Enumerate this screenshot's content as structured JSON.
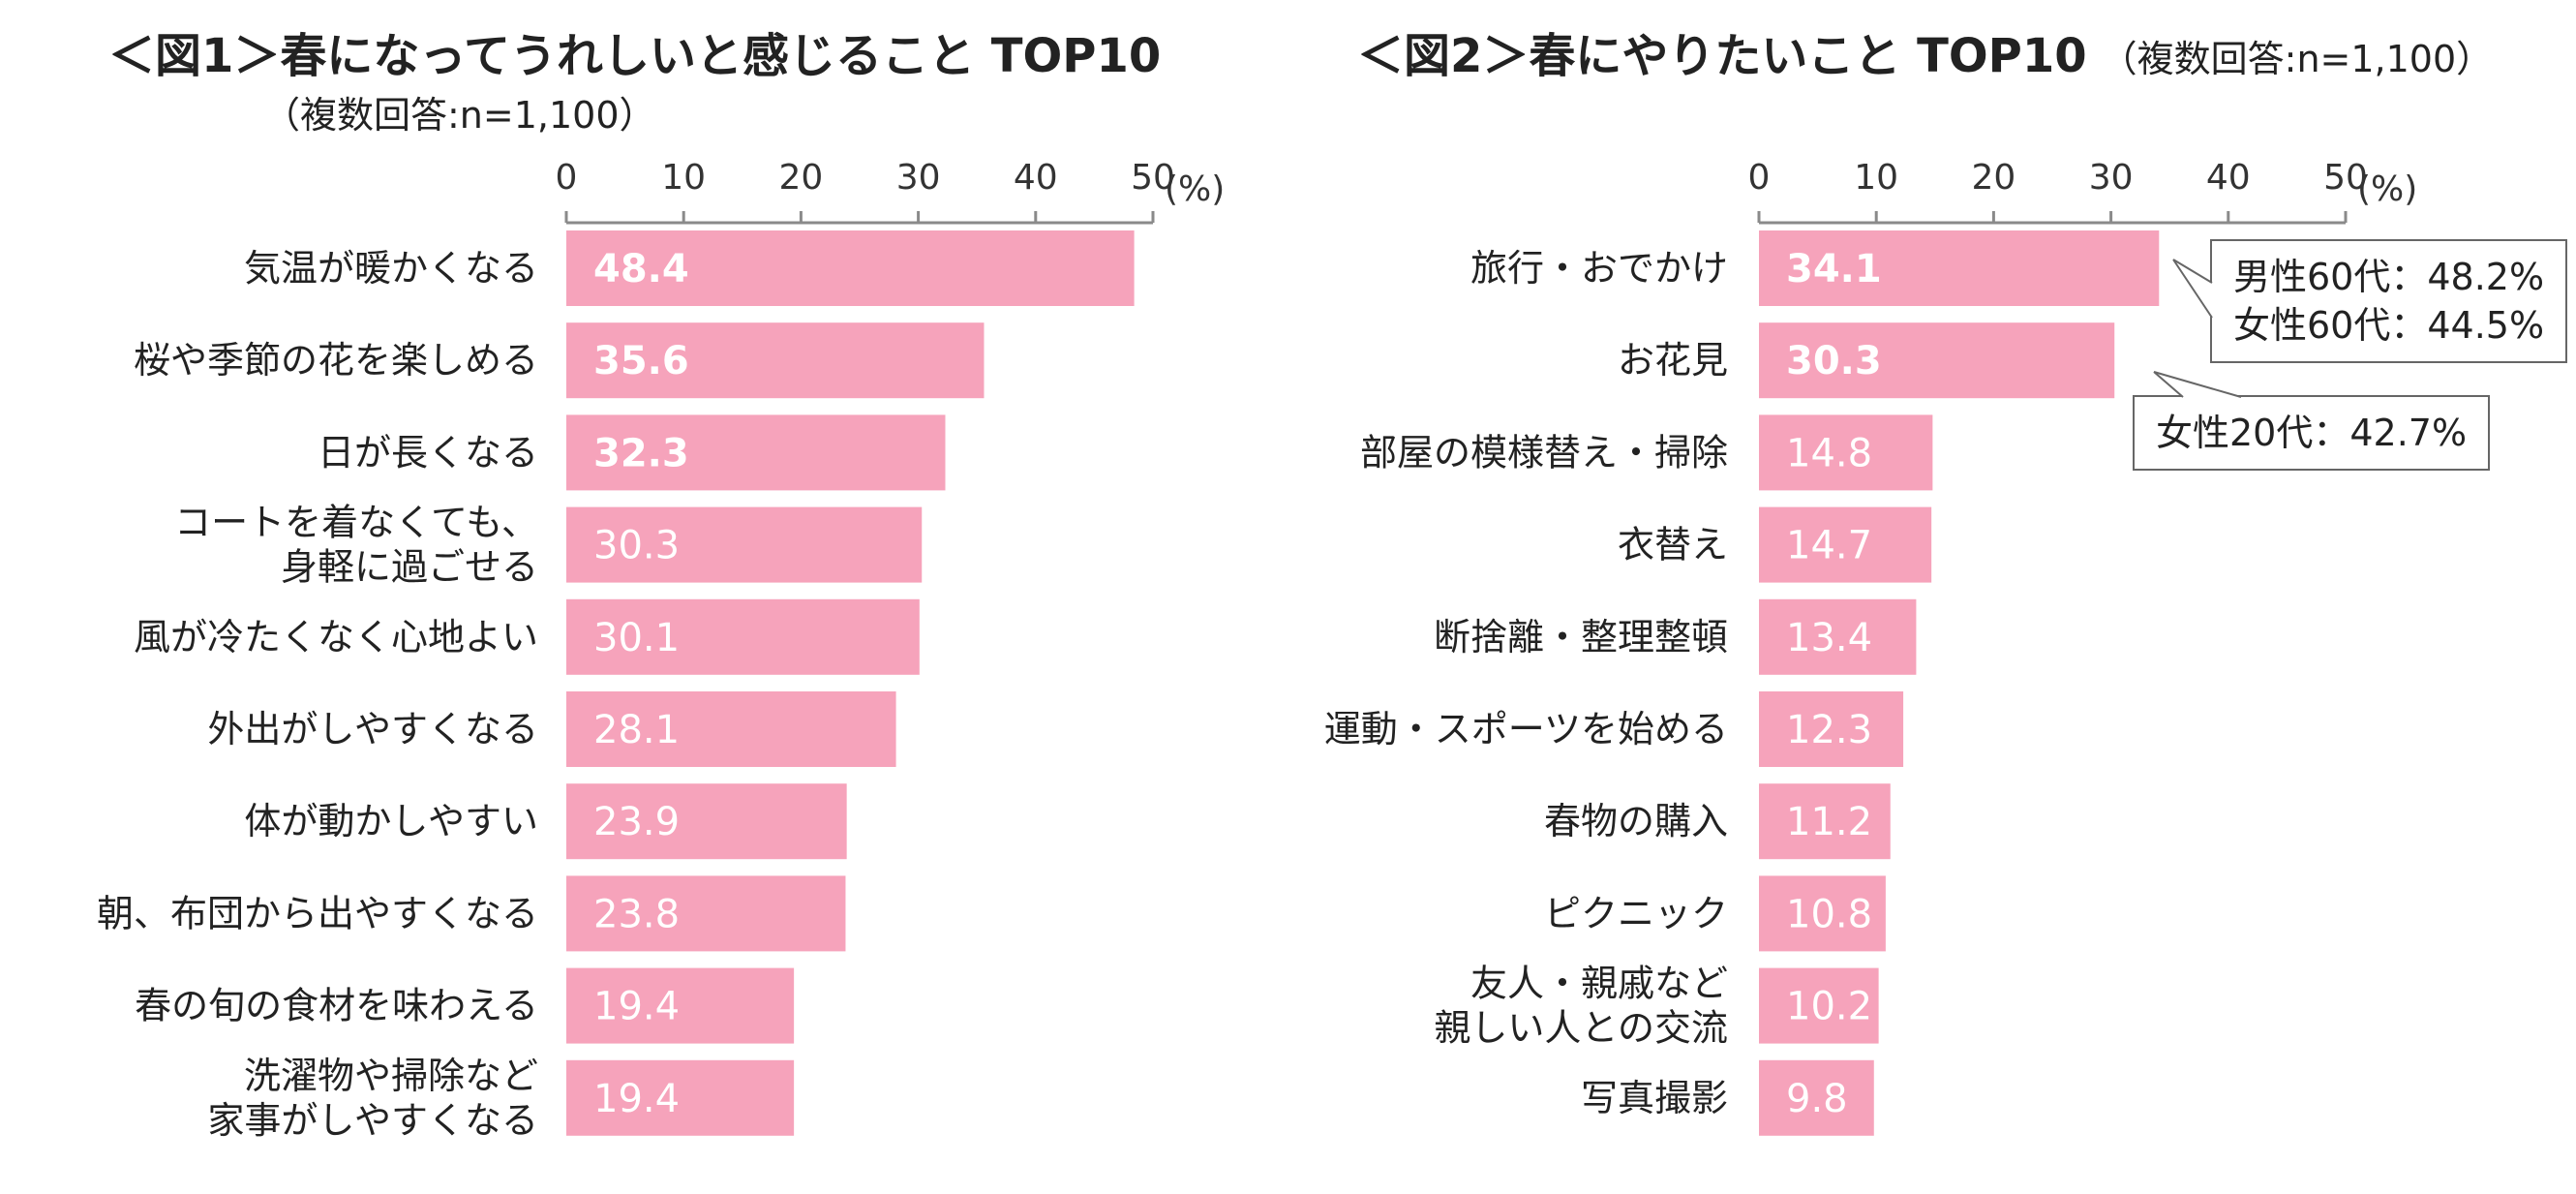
{
  "chart_data": [
    {
      "type": "bar",
      "orientation": "horizontal",
      "title": "＜図1＞春になってうれしいと感じること TOP10",
      "subtitle": "（複数回答:n=1,100）",
      "unit_label": "(%)",
      "xlim": [
        0,
        50
      ],
      "ticks": [
        0,
        10,
        20,
        30,
        40,
        50
      ],
      "categories": [
        [
          "気温が暖かくなる"
        ],
        [
          "桜や季節の花を楽しめる"
        ],
        [
          "日が長くなる"
        ],
        [
          "コートを着なくても、",
          "身軽に過ごせる"
        ],
        [
          "風が冷たくなく心地よい"
        ],
        [
          "外出がしやすくなる"
        ],
        [
          "体が動かしやすい"
        ],
        [
          "朝、布団から出やすくなる"
        ],
        [
          "春の旬の食材を味わえる"
        ],
        [
          "洗濯物や掃除など",
          "家事がしやすくなる"
        ]
      ],
      "values": [
        48.4,
        35.6,
        32.3,
        30.3,
        30.1,
        28.1,
        23.9,
        23.8,
        19.4,
        19.4
      ],
      "value_labels": [
        "48.4",
        "35.6",
        "32.3",
        "30.3",
        "30.1",
        "28.1",
        "23.9",
        "23.8",
        "19.4",
        "19.4"
      ],
      "bold_top": 3,
      "bar_color": "#f6a3bb",
      "grid": false,
      "annotations": []
    },
    {
      "type": "bar",
      "orientation": "horizontal",
      "title": "＜図2＞春にやりたいこと TOP10",
      "subtitle": "（複数回答:n=1,100）",
      "unit_label": "(%)",
      "xlim": [
        0,
        50
      ],
      "ticks": [
        0,
        10,
        20,
        30,
        40,
        50
      ],
      "categories": [
        [
          "旅行・おでかけ"
        ],
        [
          "お花見"
        ],
        [
          "部屋の模様替え・掃除"
        ],
        [
          "衣替え"
        ],
        [
          "断捨離・整理整頓"
        ],
        [
          "運動・スポーツを始める"
        ],
        [
          "春物の購入"
        ],
        [
          "ピクニック"
        ],
        [
          "友人・親戚など",
          "親しい人との交流"
        ],
        [
          "写真撮影"
        ]
      ],
      "values": [
        34.1,
        30.3,
        14.8,
        14.7,
        13.4,
        12.3,
        11.2,
        10.8,
        10.2,
        9.8
      ],
      "value_labels": [
        "34.1",
        "30.3",
        "14.8",
        "14.7",
        "13.4",
        "12.3",
        "11.2",
        "10.8",
        "10.2",
        "9.8"
      ],
      "bold_top": 2,
      "bar_color": "#f6a3bb",
      "grid": false,
      "annotations": [
        {
          "bar_index": 0,
          "lines": [
            "男性60代：48.2%",
            "女性60代：44.5%"
          ]
        },
        {
          "bar_index": 1,
          "lines": [
            "女性20代：42.7%"
          ]
        }
      ]
    }
  ]
}
